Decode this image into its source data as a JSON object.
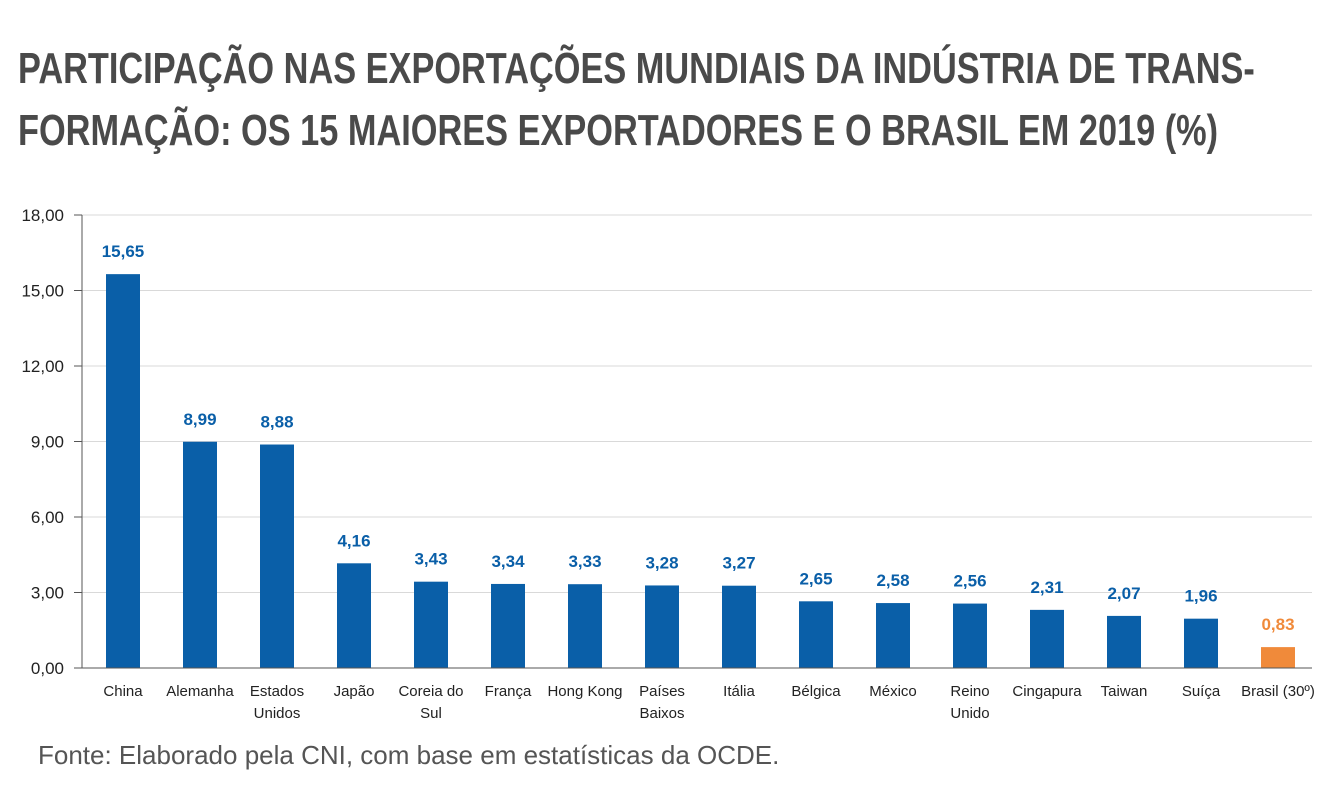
{
  "title_line1": "PARTICIPAÇÃO NAS EXPORTAÇÕES MUNDIAIS DA INDÚSTRIA DE TRANS-",
  "title_line2": "FORMAÇÃO: OS 15 MAIORES EXPORTADORES E O BRASIL EM 2019 (%)",
  "source": "Fonte: Elaborado pela CNI, com base em estatísticas da OCDE.",
  "colors": {
    "primary": "#0a5fa8",
    "highlight": "#f08a3a",
    "grid": "#d9d9d9",
    "text": "#4a4a4a"
  },
  "chart_data": {
    "type": "bar",
    "categories": [
      [
        "China"
      ],
      [
        "Alemanha"
      ],
      [
        "Estados",
        "Unidos"
      ],
      [
        "Japão"
      ],
      [
        "Coreia do",
        "Sul"
      ],
      [
        "França"
      ],
      [
        "Hong Kong"
      ],
      [
        "Países",
        "Baixos"
      ],
      [
        "Itália"
      ],
      [
        "Bélgica"
      ],
      [
        "México"
      ],
      [
        "Reino",
        "Unido"
      ],
      [
        "Cingapura"
      ],
      [
        "Taiwan"
      ],
      [
        "Suíça"
      ],
      [
        "Brasil (30º)"
      ]
    ],
    "values": [
      15.65,
      8.99,
      8.88,
      4.16,
      3.43,
      3.34,
      3.33,
      3.28,
      3.27,
      2.65,
      2.58,
      2.56,
      2.31,
      2.07,
      1.96,
      0.83
    ],
    "value_labels": [
      "15,65",
      "8,99",
      "8,88",
      "4,16",
      "3,43",
      "3,34",
      "3,33",
      "3,28",
      "3,27",
      "2,65",
      "2,58",
      "2,56",
      "2,31",
      "2,07",
      "1,96",
      "0,83"
    ],
    "highlight_index": 15,
    "ylim": [
      0,
      18
    ],
    "yticks": [
      0,
      3,
      6,
      9,
      12,
      15,
      18
    ],
    "ytick_labels": [
      "0,00",
      "3,00",
      "6,00",
      "9,00",
      "12,00",
      "15,00",
      "18,00"
    ],
    "grid": true,
    "legend": "none"
  }
}
